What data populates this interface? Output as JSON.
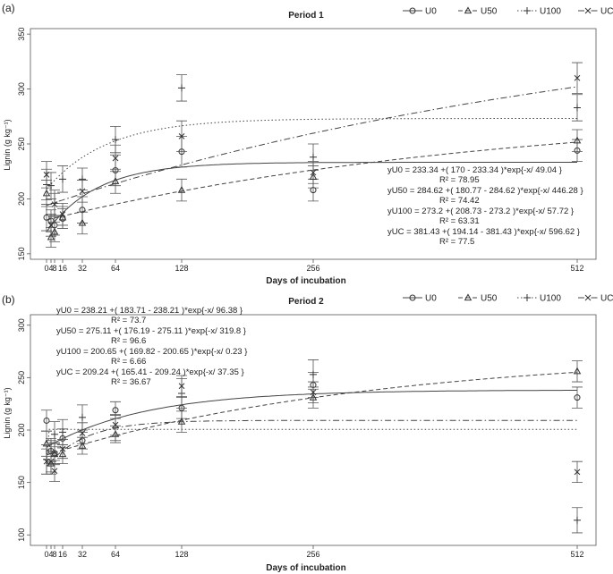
{
  "chart_data": [
    {
      "type": "scatter",
      "panel_label": "(a)",
      "title": "Period 1",
      "xlabel": "Days of incubation",
      "ylabel": "Lignin (g kg⁻¹)",
      "x_ticks": [
        0,
        4,
        8,
        16,
        32,
        64,
        128,
        256,
        512
      ],
      "ylim": [
        145,
        355
      ],
      "y_ticks": [
        150,
        200,
        250,
        300,
        350
      ],
      "legend": [
        "U0",
        "U50",
        "U100",
        "UC"
      ],
      "equations": [
        {
          "eq": "yU0 = 233.34 +( 170 - 233.34 )*exp{-x/ 49.04 }",
          "r2": "R² = 78.95"
        },
        {
          "eq": "yU50 = 284.62 +( 180.77 - 284.62 )*exp{-x/ 446.28 }",
          "r2": "R² = 74.42"
        },
        {
          "eq": "yU100 = 273.2 +( 208.73 - 273.2 )*exp{-x/ 57.72 }",
          "r2": "R² = 63.31"
        },
        {
          "eq": "yUC = 381.43 +( 194.14 - 381.43 )*exp{-x/ 596.62 }",
          "r2": "R² = 77.5"
        }
      ],
      "series": [
        {
          "name": "U0",
          "marker": "circle",
          "line": "solid",
          "fit": {
            "a": 233.34,
            "b": 170,
            "c": 49.04
          },
          "points": [
            [
              0,
              183,
              12
            ],
            [
              4,
              180,
              10
            ],
            [
              8,
              176,
              9
            ],
            [
              16,
              182,
              9
            ],
            [
              32,
              190,
              12
            ],
            [
              64,
              226,
              14
            ],
            [
              128,
              243,
              14
            ],
            [
              256,
              208,
              10
            ],
            [
              512,
              244,
              10
            ]
          ]
        },
        {
          "name": "U50",
          "marker": "triangle",
          "line": "dashed",
          "fit": {
            "a": 284.62,
            "b": 180.77,
            "c": 446.28
          },
          "points": [
            [
              0,
              205,
              12
            ],
            [
              4,
              165,
              9
            ],
            [
              8,
              170,
              9
            ],
            [
              16,
              183,
              10
            ],
            [
              32,
              178,
              10
            ],
            [
              64,
              216,
              11
            ],
            [
              128,
              208,
              10
            ],
            [
              256,
              220,
              10
            ],
            [
              512,
              253,
              10
            ]
          ]
        },
        {
          "name": "U100",
          "marker": "plus",
          "line": "dotted",
          "fit": {
            "a": 273.2,
            "b": 208.73,
            "c": 57.72
          },
          "points": [
            [
              0,
              213,
              14
            ],
            [
              4,
              212,
              12
            ],
            [
              8,
              196,
              12
            ],
            [
              16,
              218,
              12
            ],
            [
              32,
              218,
              10
            ],
            [
              64,
              254,
              12
            ],
            [
              128,
              301,
              12
            ],
            [
              256,
              238,
              12
            ],
            [
              512,
              283,
              12
            ]
          ]
        },
        {
          "name": "UC",
          "marker": "cross",
          "line": "dashdot",
          "fit": {
            "a": 381.43,
            "b": 194.14,
            "c": 596.62
          },
          "points": [
            [
              0,
              222,
              12
            ],
            [
              4,
              176,
              10
            ],
            [
              8,
              195,
              10
            ],
            [
              16,
              186,
              10
            ],
            [
              32,
              207,
              10
            ],
            [
              64,
              237,
              12
            ],
            [
              128,
              257,
              14
            ],
            [
              256,
              224,
              10
            ],
            [
              512,
              310,
              14
            ]
          ]
        }
      ]
    },
    {
      "type": "scatter",
      "panel_label": "(b)",
      "title": "Period 2",
      "xlabel": "Days of incubation",
      "ylabel": "Lignin (g kg⁻¹)",
      "x_ticks": [
        0,
        4,
        8,
        16,
        32,
        64,
        128,
        256,
        512
      ],
      "ylim": [
        90,
        310
      ],
      "y_ticks": [
        100,
        150,
        200,
        250,
        300
      ],
      "legend": [
        "U0",
        "U50",
        "U100",
        "UC"
      ],
      "equations": [
        {
          "eq": "yU0 = 238.21 +( 183.71 - 238.21 )*exp{-x/ 96.38 }",
          "r2": "R² = 73.7"
        },
        {
          "eq": "yU50 = 275.11 +( 176.19 - 275.11 )*exp{-x/ 319.8 }",
          "r2": "R² = 96.6"
        },
        {
          "eq": "yU100 = 200.65 +( 169.82 - 200.65 )*exp{-x/ 0.23 }",
          "r2": "R² = 6.66"
        },
        {
          "eq": "yUC = 209.24 +( 165.41 - 209.24 )*exp{-x/ 37.35 }",
          "r2": "R² = 36.67"
        }
      ],
      "series": [
        {
          "name": "U0",
          "marker": "circle",
          "line": "solid",
          "fit": {
            "a": 238.21,
            "b": 183.71,
            "c": 96.38
          },
          "points": [
            [
              0,
              209,
              10
            ],
            [
              4,
              180,
              10
            ],
            [
              8,
              178,
              10
            ],
            [
              16,
              192,
              9
            ],
            [
              32,
              190,
              8
            ],
            [
              64,
              219,
              8
            ],
            [
              128,
              221,
              10
            ],
            [
              256,
              243,
              12
            ],
            [
              512,
              231,
              10
            ]
          ]
        },
        {
          "name": "U50",
          "marker": "triangle",
          "line": "dashed",
          "fit": {
            "a": 275.11,
            "b": 176.19,
            "c": 319.8
          },
          "points": [
            [
              0,
              187,
              12
            ],
            [
              4,
              168,
              10
            ],
            [
              8,
              177,
              10
            ],
            [
              16,
              177,
              9
            ],
            [
              32,
              185,
              8
            ],
            [
              64,
              196,
              8
            ],
            [
              128,
              208,
              10
            ],
            [
              256,
              231,
              10
            ],
            [
              512,
              256,
              10
            ]
          ]
        },
        {
          "name": "U100",
          "marker": "plus",
          "line": "dotted",
          "fit": {
            "a": 200.65,
            "b": 169.82,
            "c": 0.23
          },
          "points": [
            [
              0,
              172,
              14
            ],
            [
              4,
              180,
              12
            ],
            [
              8,
              196,
              12
            ],
            [
              16,
              198,
              12
            ],
            [
              32,
              212,
              12
            ],
            [
              64,
              202,
              12
            ],
            [
              128,
              235,
              14
            ],
            [
              256,
              253,
              14
            ],
            [
              512,
              114,
              12
            ]
          ]
        },
        {
          "name": "UC",
          "marker": "cross",
          "line": "dashdot",
          "fit": {
            "a": 209.24,
            "b": 165.41,
            "c": 37.35
          },
          "points": [
            [
              0,
              170,
              12
            ],
            [
              4,
              170,
              10
            ],
            [
              8,
              161,
              10
            ],
            [
              16,
              182,
              9
            ],
            [
              32,
              197,
              10
            ],
            [
              64,
              205,
              10
            ],
            [
              128,
              242,
              10
            ],
            [
              256,
              236,
              10
            ],
            [
              512,
              160,
              10
            ]
          ]
        }
      ]
    }
  ]
}
